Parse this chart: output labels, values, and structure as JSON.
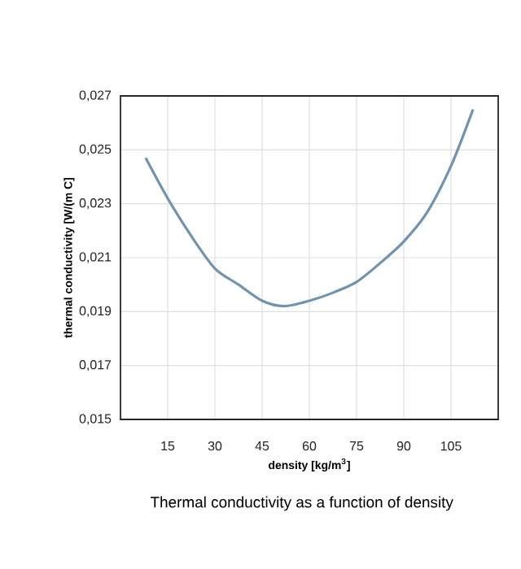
{
  "chart_data": {
    "type": "line",
    "title": "Thermal conductivity as a function of density",
    "xlabel": "density  [kg/m$^{3}$]",
    "ylabel": "thermal conductivity [W/(m C]",
    "x": [
      8,
      15,
      22.5,
      30,
      37.5,
      45,
      52,
      60,
      67.5,
      75,
      82.5,
      90,
      97.5,
      105,
      112
    ],
    "series": [
      {
        "color": "#6f93b0",
        "values": [
          0.0247,
          0.0232,
          0.0218,
          0.0206,
          0.02,
          0.0194,
          0.0192,
          0.0194,
          0.0197,
          0.0201,
          0.0208,
          0.0216,
          0.0227,
          0.0244,
          0.0265
        ]
      }
    ],
    "xlim": [
      0,
      120
    ],
    "xticks": [
      15,
      30,
      45,
      60,
      75,
      90,
      105
    ],
    "ylim": [
      0.015,
      0.027
    ],
    "yticks": [
      {
        "value": 0.015,
        "label": "0,015"
      },
      {
        "value": 0.017,
        "label": "0,017"
      },
      {
        "value": 0.019,
        "label": "0,019"
      },
      {
        "value": 0.021,
        "label": "0,021"
      },
      {
        "value": 0.023,
        "label": "0,023"
      },
      {
        "value": 0.025,
        "label": "0,025"
      },
      {
        "value": 0.027,
        "label": "0,027"
      }
    ],
    "grid": true,
    "marker": "none",
    "line_style": "solid"
  }
}
